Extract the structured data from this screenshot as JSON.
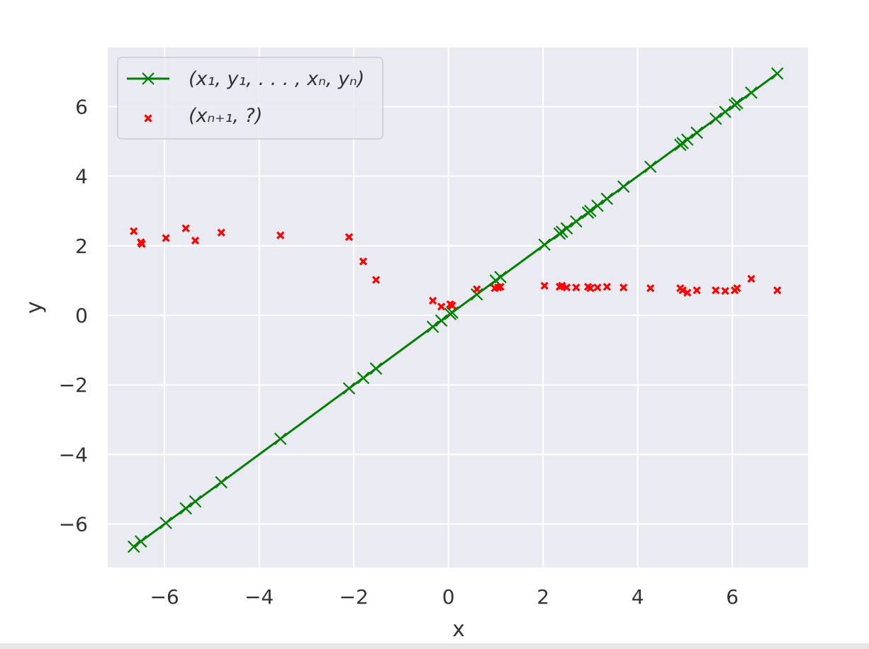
{
  "chart_data": {
    "type": "scatter",
    "xlabel": "x",
    "ylabel": "y",
    "xlim": [
      -7.2,
      7.6
    ],
    "ylim": [
      -7.25,
      7.7
    ],
    "xticks": [
      -6,
      -4,
      -2,
      0,
      2,
      4,
      6
    ],
    "yticks": [
      -6,
      -4,
      -2,
      0,
      2,
      4,
      6
    ],
    "xtick_labels": [
      "−6",
      "−4",
      "−2",
      "0",
      "2",
      "4",
      "6"
    ],
    "ytick_labels": [
      "−6",
      "−4",
      "−2",
      "0",
      "2",
      "4",
      "6"
    ],
    "grid": true,
    "background": "#EAEAF2",
    "legend_position": "top-left",
    "series": [
      {
        "name": "(x1, y1, ..., xn, yn)",
        "legend_label": "(x₁, y₁, . . . , xₙ, yₙ)",
        "style": "line-with-x-markers",
        "color": "#008000",
        "x": [
          -6.65,
          -6.5,
          -5.97,
          -5.55,
          -5.35,
          -4.8,
          -3.55,
          -2.1,
          -1.8,
          -1.53,
          -0.33,
          -0.15,
          0.04,
          0.08,
          0.6,
          1.0,
          1.1,
          2.03,
          2.35,
          2.4,
          2.5,
          2.7,
          2.95,
          3.0,
          3.15,
          3.35,
          3.7,
          4.27,
          4.9,
          4.95,
          5.05,
          5.25,
          5.65,
          5.85,
          6.05,
          6.1,
          6.4,
          6.95
        ],
        "y": [
          -6.65,
          -6.5,
          -5.97,
          -5.55,
          -5.35,
          -4.8,
          -3.55,
          -2.1,
          -1.8,
          -1.53,
          -0.33,
          -0.15,
          0.04,
          0.08,
          0.6,
          1.0,
          1.1,
          2.03,
          2.35,
          2.4,
          2.5,
          2.7,
          2.95,
          3.0,
          3.15,
          3.35,
          3.7,
          4.27,
          4.9,
          4.95,
          5.05,
          5.25,
          5.65,
          5.85,
          6.05,
          6.1,
          6.4,
          6.95
        ]
      },
      {
        "name": "(xn+1, ?)",
        "legend_label": "(xₙ₊₁, ?)",
        "style": "x-markers",
        "color": "#FF0000",
        "x": [
          -6.65,
          -6.5,
          -6.48,
          -5.97,
          -5.55,
          -5.35,
          -4.8,
          -3.55,
          -2.1,
          -1.8,
          -1.53,
          -0.33,
          -0.15,
          0.04,
          0.08,
          0.6,
          0.98,
          1.05,
          1.1,
          2.03,
          2.35,
          2.4,
          2.5,
          2.7,
          2.95,
          3.0,
          3.15,
          3.35,
          3.7,
          4.27,
          4.9,
          4.95,
          5.05,
          5.25,
          5.65,
          5.85,
          6.05,
          6.1,
          6.4,
          6.95
        ],
        "y": [
          2.42,
          2.1,
          2.05,
          2.22,
          2.5,
          2.15,
          2.38,
          2.3,
          2.25,
          1.55,
          1.02,
          0.42,
          0.25,
          0.32,
          0.28,
          0.75,
          0.78,
          0.8,
          0.82,
          0.85,
          0.82,
          0.85,
          0.8,
          0.8,
          0.82,
          0.78,
          0.8,
          0.82,
          0.8,
          0.78,
          0.78,
          0.72,
          0.65,
          0.72,
          0.72,
          0.7,
          0.72,
          0.78,
          1.05,
          0.72
        ]
      }
    ]
  }
}
